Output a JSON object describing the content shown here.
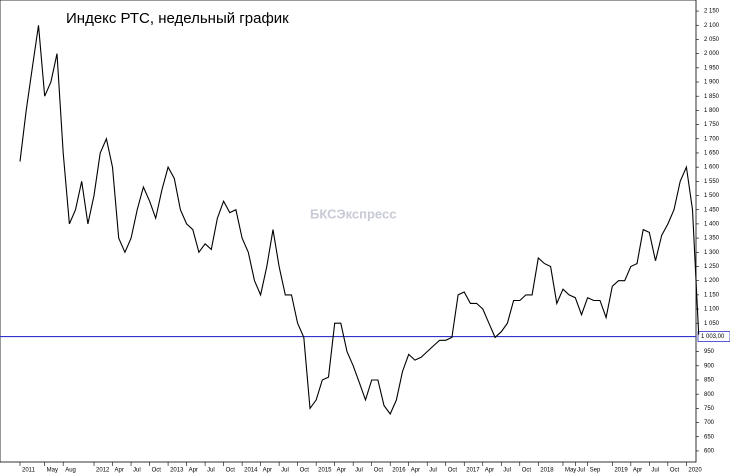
{
  "chart_data": {
    "type": "line",
    "title": "Индекс РТС, недельный график",
    "watermark": "БКСЭкспресс",
    "categories": [
      "2011",
      null,
      null,
      null,
      "May",
      null,
      null,
      "Aug",
      null,
      null,
      null,
      null,
      "2012",
      null,
      null,
      "Apr",
      null,
      null,
      "Jul",
      null,
      null,
      "Oct",
      null,
      null,
      "2013",
      null,
      null,
      "Apr",
      null,
      null,
      "Jul",
      null,
      null,
      "Oct",
      null,
      null,
      "2014",
      null,
      null,
      "Apr",
      null,
      null,
      "Jul",
      null,
      null,
      "Oct",
      null,
      null,
      "2015",
      null,
      null,
      "Apr",
      null,
      null,
      "Jul",
      null,
      null,
      "Oct",
      null,
      null,
      "2016",
      null,
      null,
      "Apr",
      null,
      null,
      "Jul",
      null,
      null,
      "Oct",
      null,
      null,
      "2017",
      null,
      null,
      "Apr",
      null,
      null,
      "Jul",
      null,
      null,
      "Oct",
      null,
      null,
      "2018",
      null,
      null,
      null,
      "May",
      null,
      "Jul",
      null,
      "Sep",
      null,
      null,
      null,
      "2019",
      null,
      null,
      "Apr",
      null,
      null,
      "Jul",
      null,
      null,
      "Oct",
      null,
      null,
      "2020",
      null,
      null
    ],
    "values": [
      1620,
      1800,
      1950,
      2100,
      1850,
      1900,
      2000,
      1650,
      1400,
      1450,
      1550,
      1400,
      1500,
      1650,
      1700,
      1600,
      1350,
      1300,
      1350,
      1450,
      1530,
      1480,
      1420,
      1520,
      1600,
      1560,
      1450,
      1400,
      1380,
      1300,
      1330,
      1310,
      1420,
      1480,
      1440,
      1450,
      1350,
      1300,
      1200,
      1150,
      1250,
      1380,
      1250,
      1150,
      1150,
      1050,
      1000,
      750,
      780,
      850,
      860,
      1050,
      1050,
      950,
      900,
      840,
      780,
      850,
      850,
      760,
      730,
      780,
      880,
      940,
      920,
      930,
      950,
      970,
      990,
      990,
      1000,
      1150,
      1160,
      1120,
      1120,
      1100,
      1050,
      1000,
      1020,
      1050,
      1130,
      1130,
      1150,
      1150,
      1280,
      1260,
      1250,
      1120,
      1170,
      1150,
      1140,
      1080,
      1140,
      1130,
      1130,
      1070,
      1180,
      1200,
      1200,
      1250,
      1260,
      1380,
      1370,
      1270,
      1360,
      1400,
      1450,
      1550,
      1600,
      1450,
      1010
    ],
    "color": "#000000",
    "ylim": [
      561,
      2189
    ],
    "yticks": [
      600,
      650,
      700,
      750,
      800,
      850,
      900,
      950,
      {
        "value": 1050,
        "label": "1 050"
      },
      {
        "value": 1100,
        "label": "1 100"
      },
      {
        "value": 1150,
        "label": "1 150"
      },
      {
        "value": 1200,
        "label": "1 200"
      },
      {
        "value": 1250,
        "label": "1 250"
      },
      {
        "value": 1300,
        "label": "1 300"
      },
      {
        "value": 1350,
        "label": "1 350"
      },
      {
        "value": 1400,
        "label": "1 400"
      },
      {
        "value": 1450,
        "label": "1 450"
      },
      {
        "value": 1500,
        "label": "1 500"
      },
      {
        "value": 1550,
        "label": "1 550"
      },
      {
        "value": 1600,
        "label": "1 600"
      },
      {
        "value": 1650,
        "label": "1 650"
      },
      {
        "value": 1700,
        "label": "1 700"
      },
      {
        "value": 1750,
        "label": "1 750"
      },
      {
        "value": 1800,
        "label": "1 800"
      },
      {
        "value": 1850,
        "label": "1 850"
      },
      {
        "value": 1900,
        "label": "1 900"
      },
      {
        "value": 1950,
        "label": "1 950"
      },
      {
        "value": 2000,
        "label": "2 000"
      },
      {
        "value": 2050,
        "label": "2 050"
      },
      {
        "value": 2100,
        "label": "2 100"
      },
      {
        "value": 2150,
        "label": "2 150"
      }
    ],
    "hline": {
      "value": 1003,
      "label": "1 003,00",
      "color": "#3333cc"
    }
  }
}
